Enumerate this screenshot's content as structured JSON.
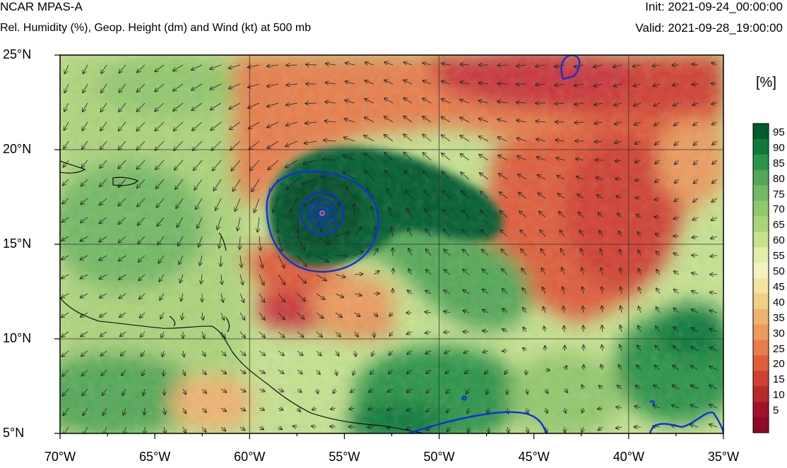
{
  "header": {
    "model": "NCAR MPAS-A",
    "description": "Rel. Humidity (%), Geop. Height (dm) and Wind (kt) at 500 mb",
    "init": "Init: 2021-09-24_00:00:00",
    "valid": "Valid: 2021-09-28_19:00:00"
  },
  "axes": {
    "lat_labels": [
      "25°N",
      "20°N",
      "15°N",
      "10°N",
      "5°N"
    ],
    "lon_labels": [
      "70°W",
      "65°W",
      "60°W",
      "55°W",
      "50°W",
      "45°W",
      "40°W",
      "35°W"
    ]
  },
  "colorbar": {
    "unit": "[%]",
    "labels": [
      "95",
      "90",
      "85",
      "80",
      "75",
      "70",
      "65",
      "60",
      "55",
      "50",
      "45",
      "40",
      "35",
      "30",
      "25",
      "20",
      "15",
      "10",
      "5"
    ],
    "colors": [
      "#005b2d",
      "#0d7a3a",
      "#2a9447",
      "#52a856",
      "#73b963",
      "#92c86c",
      "#aad47a",
      "#c6e28f",
      "#e2eea8",
      "#f3f2c0",
      "#f4e4a0",
      "#f1cf85",
      "#eeb46f",
      "#eb9b5d",
      "#e77e4b",
      "#df5d3b",
      "#d03f30",
      "#b82a2b",
      "#a0122a",
      "#8b0a27"
    ],
    "palette_name": "red-yellow-green relative humidity"
  },
  "map": {
    "extent": {
      "lon_min": -70,
      "lon_max": -35,
      "lat_min": 5,
      "lat_max": 25
    },
    "storm_center": {
      "lon": -56.1,
      "lat": 16.6
    },
    "contour_color": "#1030e0",
    "coastline_color": "#000000"
  }
}
